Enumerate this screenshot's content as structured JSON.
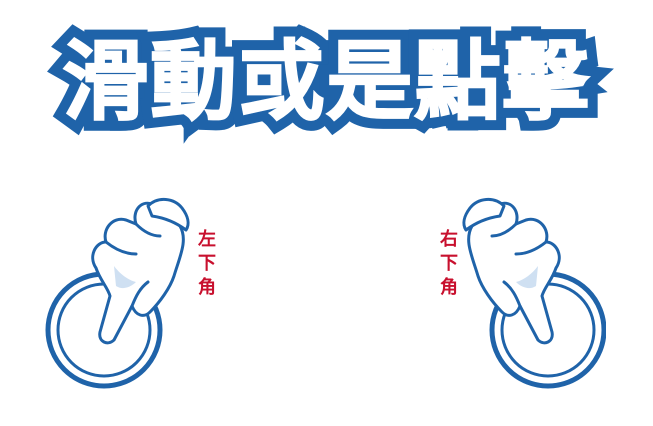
{
  "title": "滑動或是點擊",
  "hints": {
    "left": {
      "label": "左下角",
      "icon": "pointing-hand-icon"
    },
    "right": {
      "label": "右下角",
      "icon": "pointing-hand-icon"
    }
  },
  "colors": {
    "title_fill": "#ffffff",
    "title_outline": "#1f63a9",
    "ring": "#1f63a9",
    "label": "#c8102e",
    "hand_fill": "#ffffff",
    "hand_stroke": "#1f63a9"
  }
}
